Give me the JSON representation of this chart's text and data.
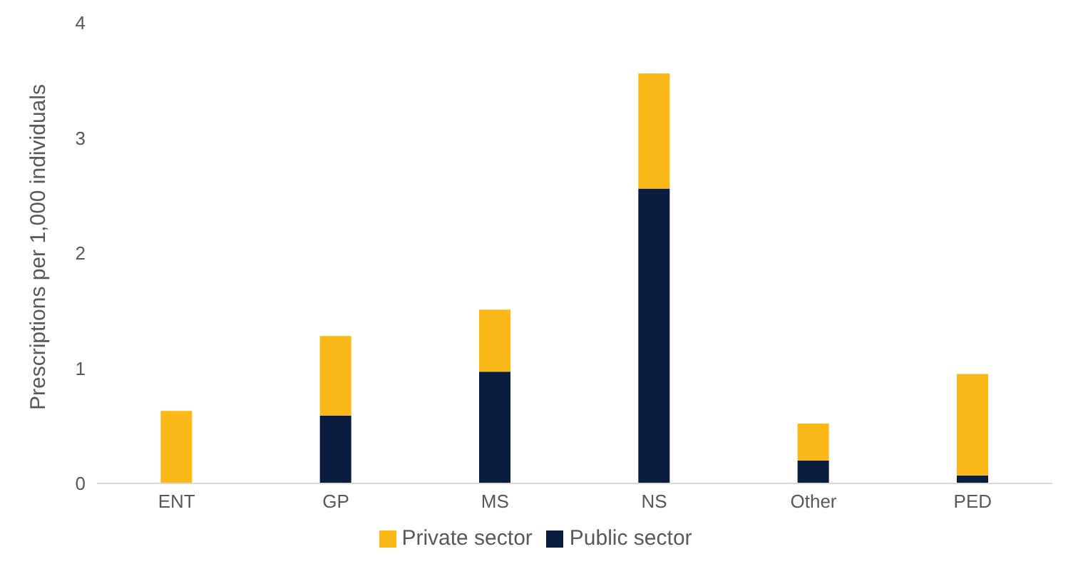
{
  "chart_data": {
    "type": "bar",
    "ylabel": "Prescriptions per 1,000 individuals",
    "categories": [
      "ENT",
      "GP",
      "MS",
      "NS",
      "Other",
      "PED"
    ],
    "stacked": true,
    "series": [
      {
        "name": "Public sector",
        "color": "#0b1d3f",
        "values": [
          0,
          0.59,
          0.97,
          2.56,
          0.2,
          0.07
        ]
      },
      {
        "name": "Private sector",
        "color": "#fbb819",
        "values": [
          0.63,
          0.69,
          0.54,
          1.0,
          0.32,
          0.88
        ]
      }
    ],
    "ylim": [
      0,
      4
    ],
    "yticks": [
      0,
      1,
      2,
      3,
      4
    ],
    "grid": false,
    "legend": "bottom"
  }
}
